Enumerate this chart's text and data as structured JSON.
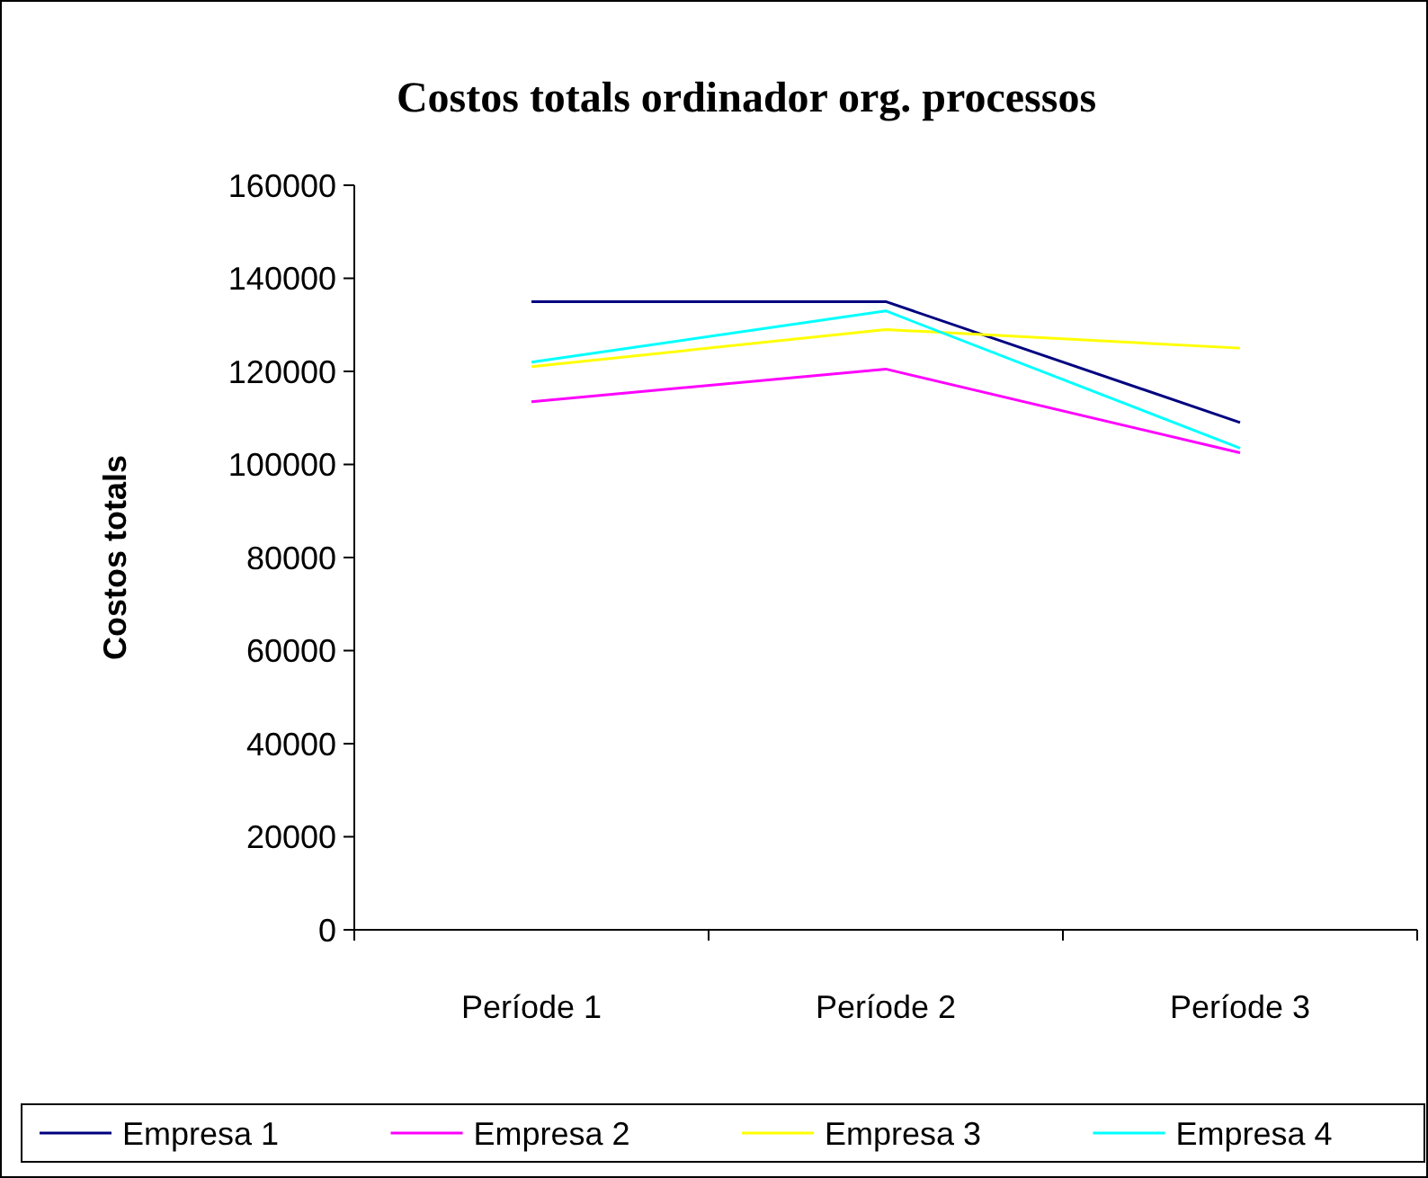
{
  "chart_data": {
    "type": "line",
    "title": "Costos totals ordinador org. processos",
    "ylabel": "Costos totals",
    "categories": [
      "Període 1",
      "Període 2",
      "Període 3"
    ],
    "series": [
      {
        "name": "Empresa 1",
        "color": "#000080",
        "values": [
          135000,
          135000,
          109000
        ]
      },
      {
        "name": "Empresa 2",
        "color": "#ff00ff",
        "values": [
          113500,
          120500,
          102500
        ]
      },
      {
        "name": "Empresa 3",
        "color": "#ffff00",
        "values": [
          121000,
          129000,
          125000
        ]
      },
      {
        "name": "Empresa 4",
        "color": "#00ffff",
        "values": [
          122000,
          133000,
          103500
        ]
      }
    ],
    "ylim": [
      0,
      160000
    ],
    "yticks": [
      0,
      20000,
      40000,
      60000,
      80000,
      100000,
      120000,
      140000,
      160000
    ],
    "grid": false,
    "legend": "bottom",
    "marker": "none",
    "line_style": "solid"
  }
}
